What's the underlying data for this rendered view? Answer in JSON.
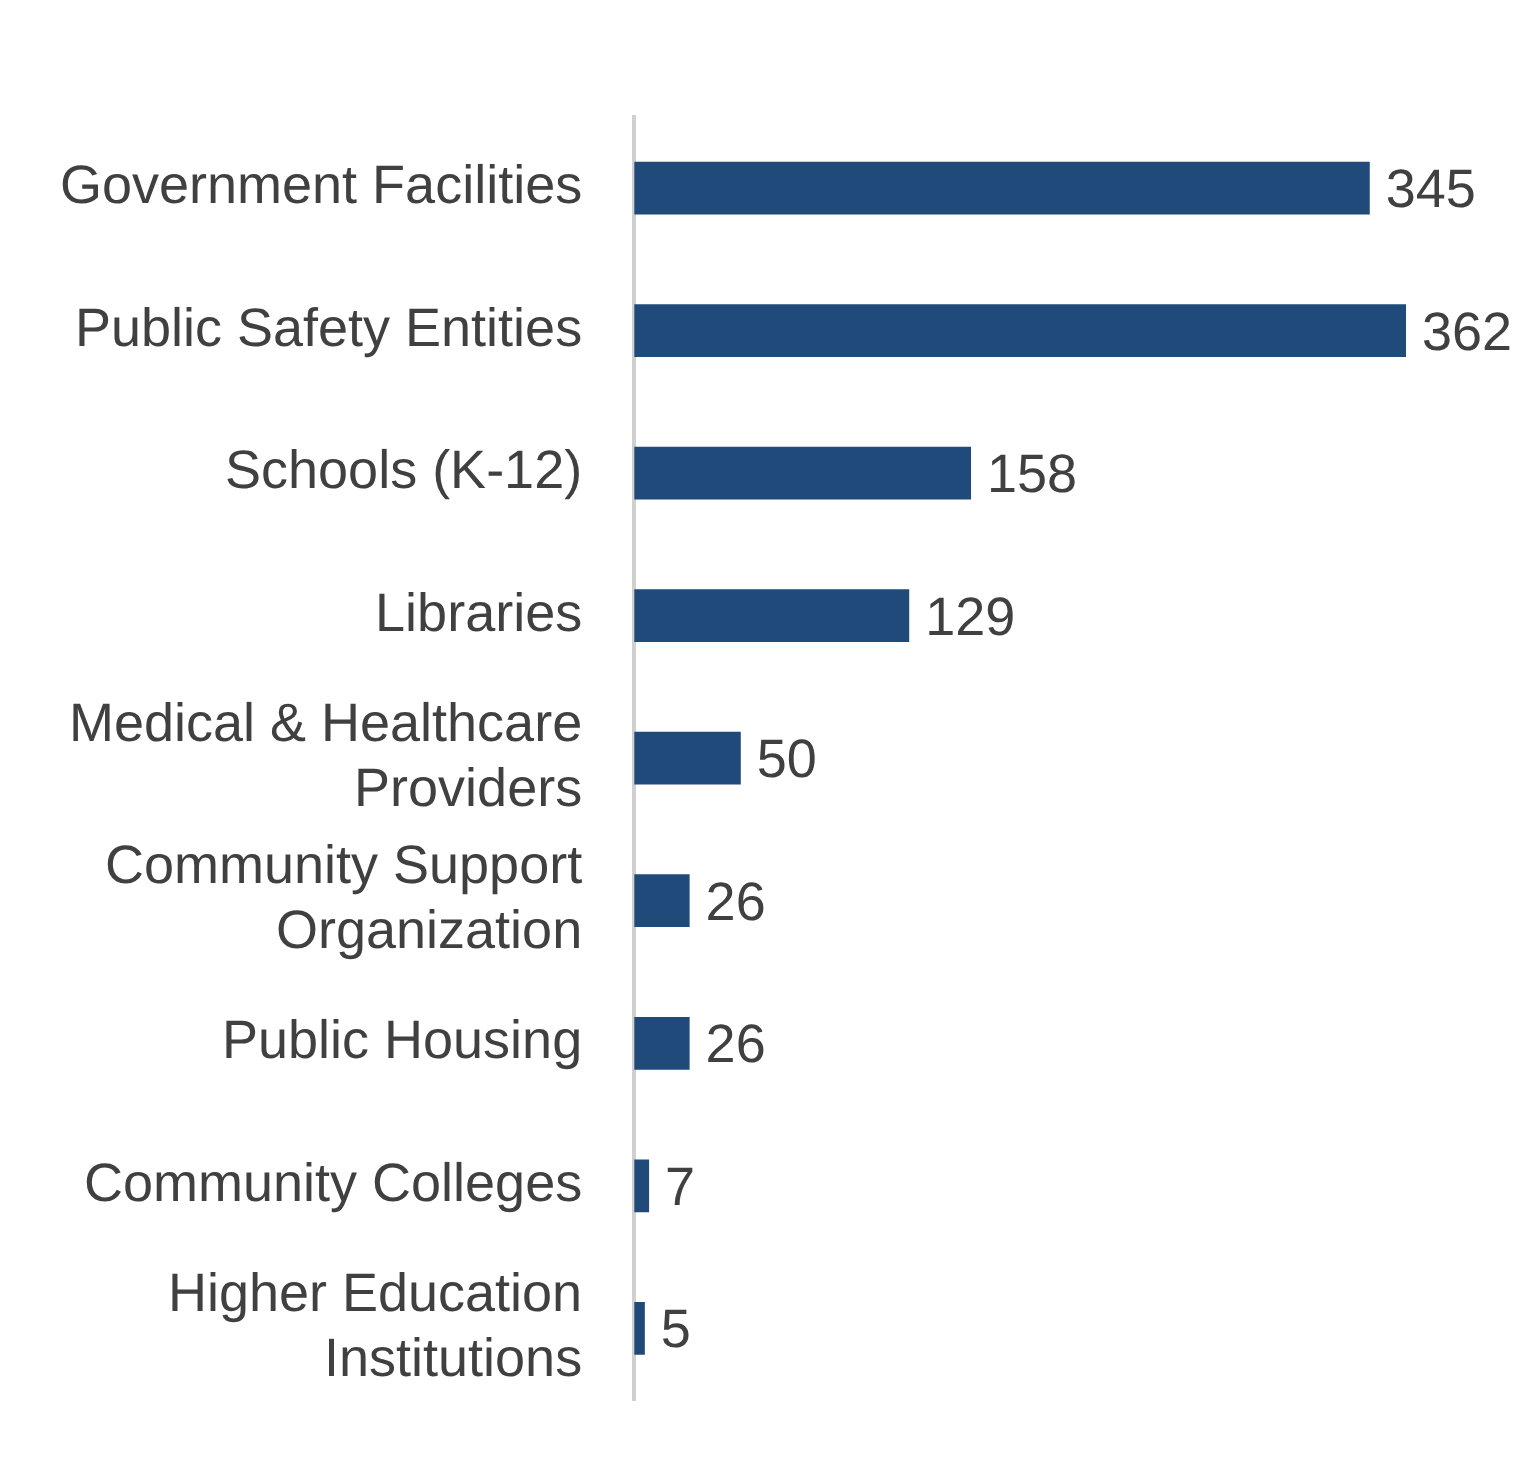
{
  "chart_data": {
    "type": "bar",
    "orientation": "horizontal",
    "categories": [
      "Government Facilities",
      "Public Safety Entities",
      "Schools (K-12)",
      "Libraries",
      "Medical & Healthcare Providers",
      "Community Support Organization",
      "Public Housing",
      "Community Colleges",
      "Higher Education Institutions"
    ],
    "values": [
      345,
      362,
      158,
      129,
      50,
      26,
      26,
      7,
      5
    ],
    "color": "#1f4a7a",
    "data_labels": true,
    "grid": false,
    "legend": false
  }
}
